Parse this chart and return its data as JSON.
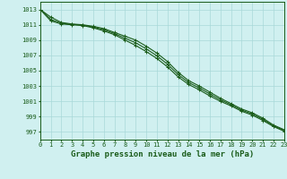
{
  "title": "Graphe pression niveau de la mer (hPa)",
  "background_color": "#d0f0f0",
  "grid_color": "#a8d8d8",
  "line_color": "#1a5c1a",
  "xlim": [
    0,
    23
  ],
  "ylim": [
    996,
    1014
  ],
  "yticks": [
    997,
    999,
    1001,
    1003,
    1005,
    1007,
    1009,
    1011,
    1013
  ],
  "xticks": [
    0,
    1,
    2,
    3,
    4,
    5,
    6,
    7,
    8,
    9,
    10,
    11,
    12,
    13,
    14,
    15,
    16,
    17,
    18,
    19,
    20,
    21,
    22,
    23
  ],
  "series1_y": [
    1013.0,
    1011.5,
    1011.1,
    1011.0,
    1010.9,
    1010.6,
    1010.2,
    1009.7,
    1009.0,
    1008.3,
    1007.5,
    1006.6,
    1005.5,
    1004.2,
    1003.2,
    1002.5,
    1001.7,
    1001.0,
    1000.4,
    999.7,
    999.2,
    998.5,
    997.7,
    997.1
  ],
  "series2_y": [
    1013.0,
    1012.0,
    1011.3,
    1011.1,
    1011.0,
    1010.8,
    1010.5,
    1010.0,
    1009.5,
    1009.0,
    1008.2,
    1007.3,
    1006.2,
    1004.8,
    1003.7,
    1003.0,
    1002.2,
    1001.4,
    1000.7,
    1000.0,
    999.5,
    998.8,
    997.9,
    997.3
  ],
  "series3_y": [
    1013.0,
    1011.7,
    1011.2,
    1011.05,
    1010.95,
    1010.7,
    1010.35,
    1009.85,
    1009.25,
    1008.65,
    1007.85,
    1006.95,
    1005.85,
    1004.5,
    1003.45,
    1002.75,
    1001.95,
    1001.2,
    1000.55,
    999.85,
    999.35,
    998.65,
    997.8,
    997.2
  ],
  "lw": 0.8,
  "marker_size": 3.0,
  "tick_fontsize": 5.0,
  "xlabel_fontsize": 6.5
}
